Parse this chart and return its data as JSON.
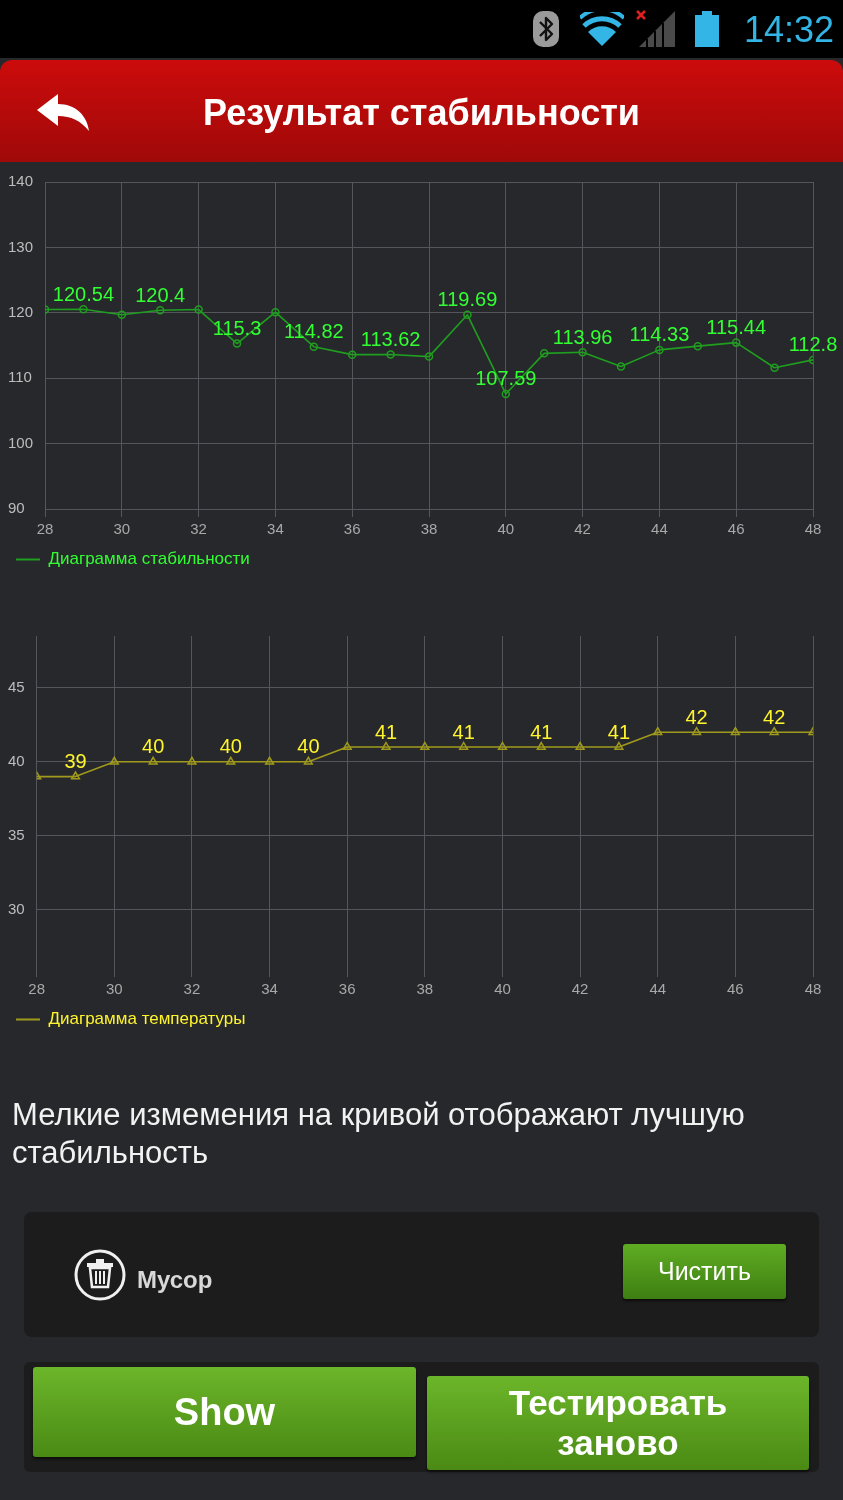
{
  "chart_data": [
    {
      "type": "other",
      "title": "Результат стабильности",
      "annotations": [
        "14:32"
      ]
    },
    {
      "type": "line",
      "x": [
        28,
        29,
        30,
        31,
        32,
        33,
        34,
        35,
        36,
        37,
        38,
        39,
        40,
        41,
        42,
        43,
        44,
        45,
        46,
        47,
        48
      ],
      "series": [
        {
          "name": "Диаграмма стабильности",
          "color": "#1f9e1f",
          "values": [
            120.5,
            120.54,
            119.7,
            120.4,
            120.5,
            115.3,
            120.1,
            114.82,
            113.6,
            113.62,
            113.3,
            119.69,
            107.59,
            113.8,
            113.96,
            111.8,
            114.33,
            114.9,
            115.44,
            111.6,
            112.8
          ],
          "value_labels": [
            null,
            "120.54",
            null,
            "120.4",
            null,
            "115.3",
            null,
            "114.82",
            null,
            "113.62",
            null,
            "119.69",
            "107.59",
            null,
            "113.96",
            null,
            "114.33",
            null,
            "115.44",
            null,
            "112.8"
          ]
        }
      ],
      "xlim": [
        28,
        48
      ],
      "xticks": [
        28,
        30,
        32,
        34,
        36,
        38,
        40,
        42,
        44,
        46,
        48
      ],
      "ylim": [
        90,
        140
      ],
      "yticks": [
        90,
        100,
        110,
        120,
        130,
        140
      ],
      "grid": true,
      "legend": "bottom left",
      "marker": "circle"
    },
    {
      "type": "line",
      "x": [
        28,
        29,
        30,
        31,
        32,
        33,
        34,
        35,
        36,
        37,
        38,
        39,
        40,
        41,
        42,
        43,
        44,
        45,
        46,
        47,
        48
      ],
      "series": [
        {
          "name": "Диаграмма температуры",
          "color": "#a09a1c",
          "values": [
            39,
            39,
            40,
            40,
            40,
            40,
            40,
            40,
            41,
            41,
            41,
            41,
            41,
            41,
            41,
            41,
            42,
            42,
            42,
            42,
            42
          ],
          "value_labels": [
            null,
            "39",
            null,
            "40",
            null,
            "40",
            null,
            "40",
            null,
            "41",
            null,
            "41",
            null,
            "41",
            null,
            "41",
            null,
            "42",
            null,
            "42",
            null
          ]
        }
      ],
      "xlim": [
        28,
        48
      ],
      "xticks": [
        28,
        30,
        32,
        34,
        36,
        38,
        40,
        42,
        44,
        46,
        48
      ],
      "ylim": [
        26,
        48.5
      ],
      "yticks": [
        30,
        35,
        40,
        45
      ],
      "grid": true,
      "legend": "bottom left",
      "marker": "triangle"
    },
    {
      "type": "other",
      "annotations": [
        "Мелкие измемения на кривой отображают лучшую стабильность",
        "Мусор",
        "Чистить",
        "Show",
        "Тестировать заново"
      ]
    }
  ]
}
